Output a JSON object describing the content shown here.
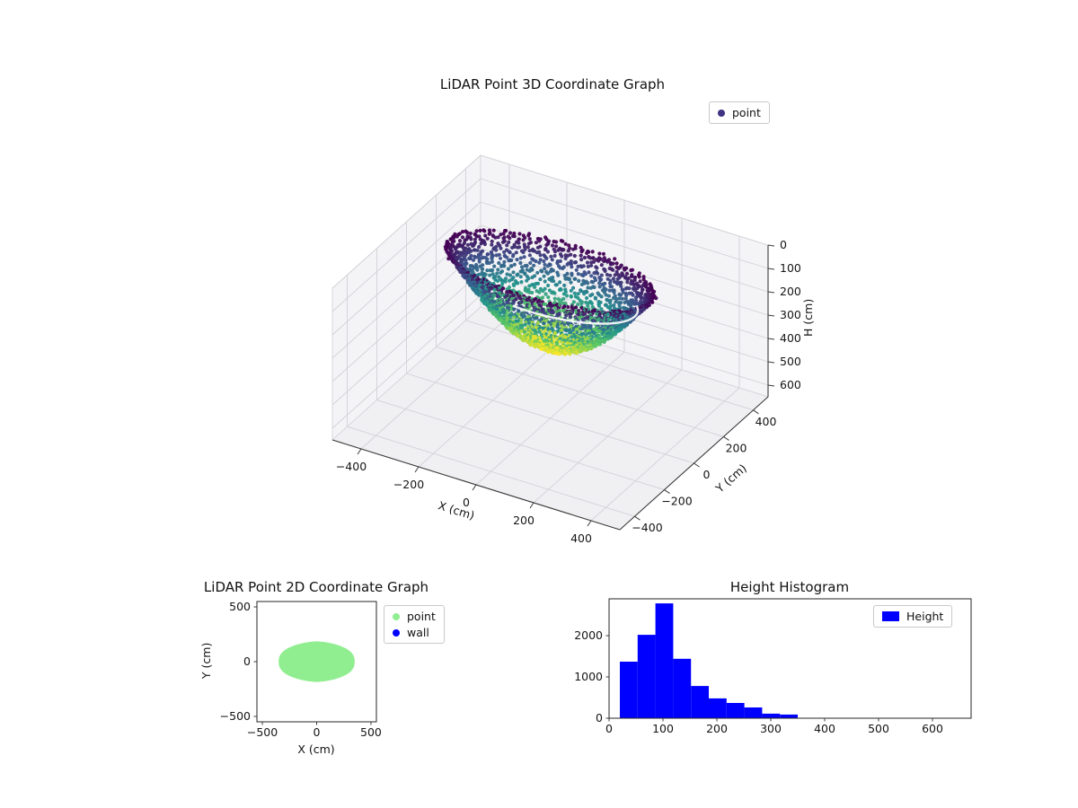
{
  "colors": {
    "blue": "#0000ff",
    "lightgreen": "#90ee90",
    "pane": "#f4f4f6",
    "pane_floor": "#f0f0f3",
    "grid3d": "#d2d2d8",
    "axisline": "#3c3c3c",
    "white_stripe": "#ffffff"
  },
  "plot3d": {
    "title": "LiDAR Point 3D Coordinate Graph",
    "xlabel": "X (cm)",
    "ylabel": "Y (cm)",
    "zlabel": "H (cm)",
    "xticks": [
      -400,
      -200,
      0,
      200,
      400
    ],
    "yticks": [
      -400,
      -200,
      0,
      200,
      400
    ],
    "zticks": [
      0,
      100,
      200,
      300,
      400,
      500,
      600
    ],
    "legend": {
      "items": [
        {
          "label": "point",
          "color": "#3e3282"
        }
      ]
    }
  },
  "plot2d": {
    "title": "LiDAR Point 2D Coordinate Graph",
    "xlabel": "X (cm)",
    "ylabel": "Y (cm)",
    "xticks": [
      -500,
      0,
      500
    ],
    "yticks": [
      500,
      0,
      -500
    ],
    "legend": {
      "items": [
        {
          "label": "point",
          "color": "#90ee90"
        },
        {
          "label": "wall",
          "color": "#0000ff"
        }
      ]
    }
  },
  "hist": {
    "title": "Height Histogram",
    "xticks": [
      0,
      100,
      200,
      300,
      400,
      500,
      600
    ],
    "yticks": [
      0,
      1000,
      2000
    ],
    "legend": {
      "items": [
        {
          "label": "Height",
          "color": "#0000ff"
        }
      ]
    }
  },
  "chart_data": [
    {
      "type": "scatter",
      "projection": "3d",
      "title": "LiDAR Point 3D Coordinate Graph",
      "xlabel": "X (cm)",
      "ylabel": "Y (cm)",
      "zlabel": "H (cm)",
      "xlim": [
        -500,
        500
      ],
      "ylim": [
        -500,
        500
      ],
      "hlim": [
        0,
        650
      ],
      "h_axis_inverted": true,
      "legend": [
        "point"
      ],
      "series": [
        {
          "name": "point",
          "colormap": "viridis",
          "color_by": "H (small H = dark purple at rim top, large H = yellow at bowl bottom)",
          "shape": "elliptic bowl-shaped LiDAR point cloud of concentric scan rings",
          "x_radius": 350,
          "y_radius": 185,
          "h_min": 20,
          "h_max": 350,
          "depth_exponent": 1.15,
          "n_points": 2400
        }
      ]
    },
    {
      "type": "scatter",
      "title": "LiDAR Point 2D Coordinate Graph",
      "xlabel": "X (cm)",
      "ylabel": "Y (cm)",
      "xlim": [
        -560,
        560
      ],
      "ylim": [
        -560,
        560
      ],
      "series": [
        {
          "name": "point",
          "color": "lightgreen",
          "shape": "dense lens-shaped blob centered at origin",
          "x_extent": [
            -350,
            350
          ],
          "y_extent": [
            -185,
            185
          ]
        },
        {
          "name": "wall",
          "color": "blue",
          "points": []
        }
      ]
    },
    {
      "type": "histogram",
      "title": "Height Histogram",
      "xlim": [
        0,
        672
      ],
      "ylim": [
        0,
        2890
      ],
      "series": [
        {
          "name": "Height",
          "color": "blue",
          "bin_edges": [
            20,
            53,
            86,
            119,
            152,
            185,
            218,
            251,
            284,
            317,
            350
          ],
          "counts": [
            1370,
            2020,
            2780,
            1440,
            780,
            480,
            370,
            260,
            110,
            90
          ]
        }
      ]
    }
  ]
}
